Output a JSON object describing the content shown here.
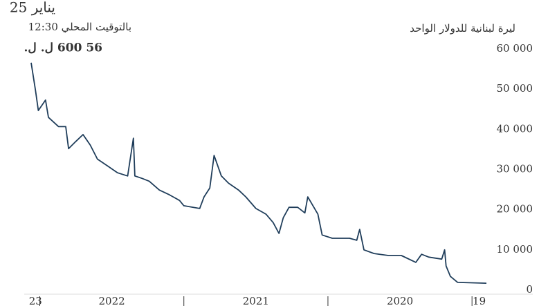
{
  "chart_data": {
    "type": "line",
    "date_label": "يناير 25",
    "time_label": "بالتوقيت المحلي 12:30",
    "y_axis_label": "ليرة لبنانية للدولار الواحد",
    "annotation": {
      "value": 56600,
      "label": "56 600 ل. ل."
    },
    "x_reversed": true,
    "xlim": [
      2019.9,
      2023.06
    ],
    "xticks": [
      2020,
      2021,
      2022,
      2023
    ],
    "x_labels": [
      {
        "value": 2019.95,
        "label": "19"
      },
      {
        "value": 2020.5,
        "label": "2020"
      },
      {
        "value": 2021.5,
        "label": "2021"
      },
      {
        "value": 2022.5,
        "label": "2022"
      },
      {
        "value": 2023.03,
        "label": "23"
      }
    ],
    "ylim": [
      0,
      60000
    ],
    "yticks": [
      0,
      {
        "value": 10000,
        "label": "10 000"
      },
      {
        "value": 20000,
        "label": "20 000"
      },
      {
        "value": 30000,
        "label": "30 000"
      },
      {
        "value": 40000,
        "label": "40 000"
      },
      {
        "value": 50000,
        "label": "50 000"
      },
      {
        "value": 60000,
        "label": "60 000"
      }
    ],
    "series": [
      {
        "color": "#1f3d5a",
        "x": [
          2019.9,
          2020.1,
          2020.15,
          2020.18,
          2020.19,
          2020.21,
          2020.3,
          2020.35,
          2020.39,
          2020.49,
          2020.58,
          2020.68,
          2020.75,
          2020.78,
          2020.8,
          2020.85,
          2020.97,
          2021.04,
          2021.07,
          2021.14,
          2021.16,
          2021.21,
          2021.27,
          2021.31,
          2021.34,
          2021.38,
          2021.43,
          2021.5,
          2021.57,
          2021.62,
          2021.69,
          2021.74,
          2021.79,
          2021.82,
          2021.86,
          2021.89,
          2022.0,
          2022.03,
          2022.1,
          2022.17,
          2022.24,
          2022.29,
          2022.34,
          2022.35,
          2022.39,
          2022.46,
          2022.53,
          2022.6,
          2022.65,
          2022.7,
          2022.75,
          2022.8,
          2022.82,
          2022.87,
          2022.94,
          2022.96,
          2023.01,
          2023.03,
          2023.06
        ],
        "values": [
          1700,
          1900,
          3400,
          6000,
          10000,
          7700,
          8200,
          8900,
          6900,
          8600,
          8600,
          9100,
          10000,
          15100,
          12400,
          12900,
          12900,
          13700,
          18900,
          23200,
          19200,
          20600,
          20600,
          18000,
          14100,
          16800,
          18900,
          20300,
          23200,
          24900,
          26600,
          28400,
          33500,
          25400,
          23200,
          20300,
          21000,
          22300,
          23700,
          24900,
          27100,
          27800,
          28400,
          37800,
          28400,
          29200,
          30900,
          32600,
          36100,
          38700,
          37000,
          35200,
          40700,
          40700,
          43000,
          47300,
          44700,
          49800,
          56600
        ]
      }
    ]
  }
}
